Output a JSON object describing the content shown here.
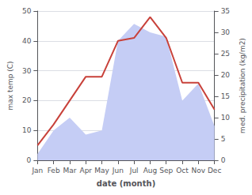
{
  "chart_data": {
    "type": "line",
    "categories": [
      "Jan",
      "Feb",
      "Mar",
      "Apr",
      "May",
      "Jun",
      "Jul",
      "Aug",
      "Sep",
      "Oct",
      "Nov",
      "Dec"
    ],
    "xlabel": "date (month)",
    "ylabel": "max temp (C)",
    "y2label": "med. precipitation (kg/m2)",
    "series": [
      {
        "type": "area",
        "color": "#c5cdf5",
        "axis": "y2",
        "values": [
          1.5,
          7,
          10,
          6,
          7,
          28,
          32,
          30,
          29,
          14,
          18,
          8
        ]
      },
      {
        "type": "line",
        "color": "#c8413a",
        "values": [
          5,
          12,
          20,
          28,
          28,
          40,
          41,
          48,
          41,
          26,
          26,
          17
        ]
      }
    ],
    "ylim": [
      0,
      50
    ],
    "yticks": [
      0,
      10,
      20,
      30,
      40,
      50
    ],
    "y2lim": [
      0,
      35
    ],
    "y2ticks": [
      0,
      5,
      10,
      15,
      20,
      25,
      30,
      35
    ],
    "grid": true
  }
}
